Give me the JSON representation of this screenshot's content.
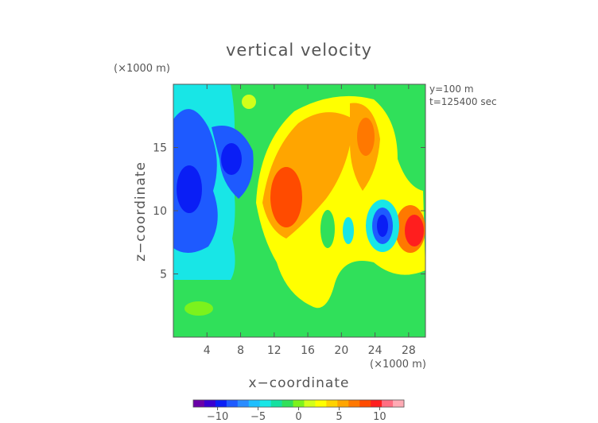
{
  "chart_data": {
    "type": "heatmap",
    "title": "vertical velocity",
    "xlabel": "x−coordinate",
    "ylabel": "z−coordinate",
    "x_unit": "(×1000 m)",
    "y_unit": "(×1000 m)",
    "annotations": [
      "y=100 m",
      "t=125400 sec"
    ],
    "xlim": [
      0,
      30
    ],
    "ylim": [
      0,
      20
    ],
    "xticks": [
      4,
      8,
      12,
      16,
      20,
      24,
      28
    ],
    "yticks": [
      5,
      10,
      15
    ],
    "xtick_labels": [
      "4",
      "8",
      "12",
      "16",
      "20",
      "24",
      "28"
    ],
    "ytick_labels": [
      "5",
      "10",
      "15"
    ],
    "colorbar": {
      "range": [
        -13,
        13
      ],
      "ticks": [
        -10,
        -5,
        0,
        5,
        10
      ],
      "tick_labels": [
        "−10",
        "−5",
        "0",
        "5",
        "10"
      ],
      "colors": [
        "#6a00a8",
        "#3a00d0",
        "#0a1ef5",
        "#1e5aff",
        "#2a8cff",
        "#1ebeff",
        "#18e6e6",
        "#14e0a0",
        "#30e05a",
        "#7cf21c",
        "#d2ff1a",
        "#ffff00",
        "#ffd200",
        "#ffa500",
        "#ff7800",
        "#ff4b00",
        "#ff1e1e",
        "#ff6e82",
        "#ffaab4"
      ]
    },
    "features": [
      {
        "x": 13,
        "z": 11,
        "w": 10,
        "label": "updraft"
      },
      {
        "x": 23,
        "z": 15,
        "w": 8,
        "label": "updraft"
      },
      {
        "x": 29,
        "z": 8.8,
        "w": 11,
        "label": "updraft"
      },
      {
        "x": 24.5,
        "z": 9,
        "w": -10,
        "label": "downdraft"
      },
      {
        "x": 2,
        "z": 11.5,
        "w": -10,
        "label": "downdraft"
      },
      {
        "x": 7,
        "z": 14,
        "w": -8,
        "label": "downdraft"
      }
    ]
  }
}
